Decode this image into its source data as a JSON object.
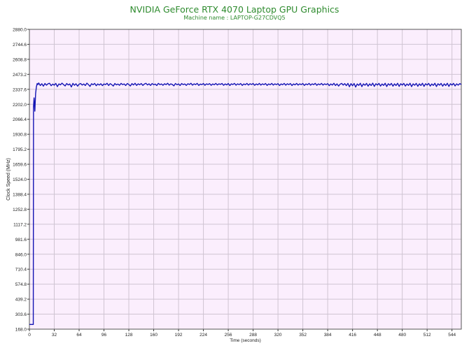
{
  "chart_data": {
    "type": "line",
    "title": "NVIDIA GeForce RTX 4070 Laptop GPU Graphics",
    "subtitle": "Machine name : LAPTOP-G27CDVQ5",
    "xlabel": "Time (seconds)",
    "ylabel": "Clock Speed (MHz)",
    "xlim": [
      0,
      556
    ],
    "ylim": [
      168.0,
      2880.0
    ],
    "x_ticks": [
      "0",
      "32",
      "64",
      "96",
      "128",
      "160",
      "192",
      "224",
      "256",
      "288",
      "320",
      "352",
      "384",
      "416",
      "448",
      "480",
      "512",
      "544"
    ],
    "y_ticks": [
      "2880.0",
      "2744.6",
      "2608.8",
      "2473.2",
      "2337.6",
      "2202.0",
      "2066.4",
      "1930.8",
      "1795.2",
      "1659.6",
      "1524.0",
      "1388.4",
      "1252.8",
      "1117.2",
      "981.6",
      "846.0",
      "710.4",
      "574.8",
      "439.2",
      "303.6",
      "168.0"
    ],
    "grid": true,
    "colors": {
      "plot_background": "#fbeefd",
      "grid": "#cfc4d2",
      "line": "#1414b4",
      "title": "#2e8b2e"
    },
    "series": [
      {
        "values": [
          [
            0,
            210
          ],
          [
            5,
            210
          ],
          [
            5.3,
            2180
          ],
          [
            6,
            2260
          ],
          [
            7,
            2140
          ],
          [
            8,
            2300
          ],
          [
            9,
            2360
          ],
          [
            10,
            2390
          ],
          [
            11,
            2380
          ],
          [
            12,
            2395
          ],
          [
            14,
            2372
          ],
          [
            16,
            2388
          ],
          [
            18,
            2366
          ],
          [
            20,
            2390
          ],
          [
            22,
            2375
          ],
          [
            24,
            2388
          ],
          [
            26,
            2392
          ],
          [
            28,
            2370
          ],
          [
            30,
            2385
          ],
          [
            32,
            2375
          ],
          [
            34,
            2391
          ],
          [
            36,
            2362
          ],
          [
            38,
            2386
          ],
          [
            40,
            2378
          ],
          [
            42,
            2393
          ],
          [
            44,
            2380
          ],
          [
            46,
            2368
          ],
          [
            48,
            2390
          ],
          [
            50,
            2377
          ],
          [
            52,
            2386
          ],
          [
            54,
            2359
          ],
          [
            56,
            2391
          ],
          [
            58,
            2374
          ],
          [
            60,
            2388
          ],
          [
            62,
            2366
          ],
          [
            64,
            2384
          ],
          [
            66,
            2390
          ],
          [
            68,
            2376
          ],
          [
            70,
            2386
          ],
          [
            72,
            2372
          ],
          [
            74,
            2393
          ],
          [
            76,
            2380
          ],
          [
            78,
            2364
          ],
          [
            80,
            2388
          ],
          [
            82,
            2379
          ],
          [
            84,
            2391
          ],
          [
            86,
            2370
          ],
          [
            88,
            2386
          ],
          [
            90,
            2376
          ],
          [
            92,
            2388
          ],
          [
            94,
            2371
          ],
          [
            96,
            2386
          ],
          [
            98,
            2380
          ],
          [
            100,
            2392
          ],
          [
            102,
            2372
          ],
          [
            104,
            2389
          ],
          [
            106,
            2380
          ],
          [
            108,
            2367
          ],
          [
            110,
            2390
          ],
          [
            112,
            2378
          ],
          [
            114,
            2385
          ],
          [
            116,
            2374
          ],
          [
            118,
            2391
          ],
          [
            120,
            2380
          ],
          [
            122,
            2386
          ],
          [
            124,
            2372
          ],
          [
            126,
            2390
          ],
          [
            128,
            2381
          ],
          [
            130,
            2368
          ],
          [
            132,
            2389
          ],
          [
            134,
            2377
          ],
          [
            136,
            2392
          ],
          [
            138,
            2373
          ],
          [
            140,
            2387
          ],
          [
            142,
            2379
          ],
          [
            144,
            2390
          ],
          [
            146,
            2373
          ],
          [
            148,
            2385
          ],
          [
            150,
            2392
          ],
          [
            152,
            2377
          ],
          [
            154,
            2387
          ],
          [
            156,
            2373
          ],
          [
            158,
            2390
          ],
          [
            160,
            2379
          ],
          [
            162,
            2385
          ],
          [
            164,
            2372
          ],
          [
            166,
            2391
          ],
          [
            168,
            2380
          ],
          [
            170,
            2386
          ],
          [
            172,
            2374
          ],
          [
            174,
            2388
          ],
          [
            176,
            2380
          ],
          [
            178,
            2392
          ],
          [
            180,
            2375
          ],
          [
            182,
            2387
          ],
          [
            184,
            2381
          ],
          [
            186,
            2369
          ],
          [
            188,
            2390
          ],
          [
            190,
            2379
          ],
          [
            192,
            2386
          ],
          [
            194,
            2372
          ],
          [
            196,
            2390
          ],
          [
            198,
            2380
          ],
          [
            200,
            2386
          ],
          [
            202,
            2373
          ],
          [
            204,
            2388
          ],
          [
            206,
            2381
          ],
          [
            208,
            2392
          ],
          [
            210,
            2375
          ],
          [
            212,
            2387
          ],
          [
            214,
            2380
          ],
          [
            216,
            2391
          ],
          [
            218,
            2373
          ],
          [
            220,
            2385
          ],
          [
            222,
            2380
          ],
          [
            224,
            2390
          ],
          [
            226,
            2374
          ],
          [
            228,
            2387
          ],
          [
            230,
            2381
          ],
          [
            232,
            2389
          ],
          [
            234,
            2374
          ],
          [
            236,
            2386
          ],
          [
            238,
            2379
          ],
          [
            240,
            2391
          ],
          [
            242,
            2377
          ],
          [
            244,
            2387
          ],
          [
            246,
            2382
          ],
          [
            248,
            2390
          ],
          [
            250,
            2374
          ],
          [
            252,
            2386
          ],
          [
            254,
            2378
          ],
          [
            256,
            2390
          ],
          [
            258,
            2372
          ],
          [
            260,
            2387
          ],
          [
            262,
            2381
          ],
          [
            264,
            2391
          ],
          [
            266,
            2375
          ],
          [
            268,
            2387
          ],
          [
            270,
            2380
          ],
          [
            272,
            2390
          ],
          [
            274,
            2373
          ],
          [
            276,
            2386
          ],
          [
            278,
            2379
          ],
          [
            280,
            2391
          ],
          [
            282,
            2376
          ],
          [
            284,
            2388
          ],
          [
            286,
            2381
          ],
          [
            288,
            2390
          ],
          [
            290,
            2374
          ],
          [
            292,
            2386
          ],
          [
            294,
            2378
          ],
          [
            296,
            2391
          ],
          [
            298,
            2376
          ],
          [
            300,
            2387
          ],
          [
            302,
            2380
          ],
          [
            304,
            2390
          ],
          [
            306,
            2373
          ],
          [
            308,
            2386
          ],
          [
            310,
            2379
          ],
          [
            312,
            2391
          ],
          [
            314,
            2376
          ],
          [
            316,
            2387
          ],
          [
            318,
            2380
          ],
          [
            320,
            2389
          ],
          [
            322,
            2372
          ],
          [
            324,
            2386
          ],
          [
            326,
            2379
          ],
          [
            328,
            2391
          ],
          [
            330,
            2375
          ],
          [
            332,
            2388
          ],
          [
            334,
            2380
          ],
          [
            336,
            2390
          ],
          [
            338,
            2372
          ],
          [
            340,
            2386
          ],
          [
            342,
            2378
          ],
          [
            344,
            2391
          ],
          [
            346,
            2376
          ],
          [
            348,
            2387
          ],
          [
            350,
            2380
          ],
          [
            352,
            2390
          ],
          [
            354,
            2373
          ],
          [
            356,
            2386
          ],
          [
            358,
            2379
          ],
          [
            360,
            2391
          ],
          [
            362,
            2375
          ],
          [
            364,
            2387
          ],
          [
            366,
            2380
          ],
          [
            368,
            2391
          ],
          [
            370,
            2374
          ],
          [
            372,
            2386
          ],
          [
            374,
            2379
          ],
          [
            376,
            2391
          ],
          [
            378,
            2376
          ],
          [
            380,
            2387
          ],
          [
            382,
            2380
          ],
          [
            384,
            2389
          ],
          [
            386,
            2371
          ],
          [
            388,
            2386
          ],
          [
            390,
            2376
          ],
          [
            392,
            2392
          ],
          [
            394,
            2372
          ],
          [
            396,
            2387
          ],
          [
            398,
            2367
          ],
          [
            400,
            2384
          ],
          [
            402,
            2391
          ],
          [
            404,
            2376
          ],
          [
            406,
            2389
          ],
          [
            408,
            2371
          ],
          [
            410,
            2391
          ],
          [
            412,
            2361
          ],
          [
            414,
            2389
          ],
          [
            416,
            2370
          ],
          [
            418,
            2390
          ],
          [
            420,
            2358
          ],
          [
            422,
            2386
          ],
          [
            424,
            2373
          ],
          [
            426,
            2392
          ],
          [
            428,
            2362
          ],
          [
            430,
            2387
          ],
          [
            432,
            2374
          ],
          [
            434,
            2391
          ],
          [
            436,
            2366
          ],
          [
            438,
            2387
          ],
          [
            440,
            2372
          ],
          [
            442,
            2393
          ],
          [
            444,
            2364
          ],
          [
            446,
            2388
          ],
          [
            448,
            2376
          ],
          [
            450,
            2391
          ],
          [
            452,
            2367
          ],
          [
            454,
            2386
          ],
          [
            456,
            2373
          ],
          [
            458,
            2392
          ],
          [
            460,
            2363
          ],
          [
            462,
            2388
          ],
          [
            464,
            2375
          ],
          [
            466,
            2391
          ],
          [
            468,
            2366
          ],
          [
            470,
            2387
          ],
          [
            472,
            2372
          ],
          [
            474,
            2392
          ],
          [
            476,
            2364
          ],
          [
            478,
            2388
          ],
          [
            480,
            2376
          ],
          [
            482,
            2391
          ],
          [
            484,
            2367
          ],
          [
            486,
            2386
          ],
          [
            488,
            2373
          ],
          [
            490,
            2392
          ],
          [
            492,
            2362
          ],
          [
            494,
            2387
          ],
          [
            496,
            2374
          ],
          [
            498,
            2391
          ],
          [
            500,
            2365
          ],
          [
            502,
            2387
          ],
          [
            504,
            2372
          ],
          [
            506,
            2392
          ],
          [
            508,
            2364
          ],
          [
            510,
            2388
          ],
          [
            512,
            2376
          ],
          [
            514,
            2391
          ],
          [
            516,
            2367
          ],
          [
            518,
            2386
          ],
          [
            520,
            2373
          ],
          [
            522,
            2392
          ],
          [
            524,
            2363
          ],
          [
            526,
            2388
          ],
          [
            528,
            2375
          ],
          [
            530,
            2391
          ],
          [
            532,
            2366
          ],
          [
            534,
            2387
          ],
          [
            536,
            2372
          ],
          [
            538,
            2392
          ],
          [
            540,
            2364
          ],
          [
            542,
            2388
          ],
          [
            544,
            2376
          ],
          [
            546,
            2391
          ],
          [
            548,
            2368
          ],
          [
            550,
            2387
          ],
          [
            552,
            2375
          ],
          [
            554,
            2389
          ],
          [
            556,
            2381
          ]
        ]
      }
    ]
  }
}
